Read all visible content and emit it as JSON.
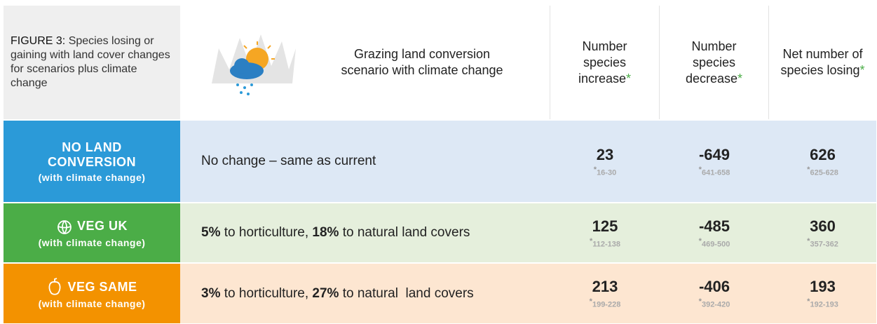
{
  "caption": {
    "label": "FIGURE 3:",
    "text": "Species losing or gaining with land cover changes for scenarios plus climate change"
  },
  "header": {
    "scenario": "Grazing land conversion scenario with climate change",
    "columns": [
      "Number species increase",
      "Number species decrease",
      "Net number of species losing"
    ],
    "asterisk": "*"
  },
  "rows": [
    {
      "name": "NO LAND CONVERSION",
      "note": "(with climate change)",
      "color": "#2b9ad8",
      "background": "#dde8f5",
      "description": [
        {
          "text": "No change – same as current",
          "bold": false
        }
      ],
      "values": [
        23,
        -649,
        626
      ],
      "ranges": [
        "16-30",
        "641-658",
        "625-628"
      ]
    },
    {
      "name": "VEG UK",
      "note": "(with climate change)",
      "color": "#4bad47",
      "background": "#e5efdc",
      "description": [
        {
          "text": "5%",
          "bold": true
        },
        {
          "text": " to horticulture, ",
          "bold": false
        },
        {
          "text": "18%",
          "bold": true
        },
        {
          "text": " to natural land covers",
          "bold": false
        }
      ],
      "values": [
        125,
        -485,
        360
      ],
      "ranges": [
        "112-138",
        "469-500",
        "357-362"
      ]
    },
    {
      "name": "VEG SAME",
      "note": "(with climate change)",
      "color": "#f39200",
      "background": "#fde6d1",
      "description": [
        {
          "text": "3%",
          "bold": true
        },
        {
          "text": " to horticulture, ",
          "bold": false
        },
        {
          "text": "27%",
          "bold": true
        },
        {
          "text": " to natural  land covers",
          "bold": false
        }
      ],
      "values": [
        213,
        -406,
        193
      ],
      "ranges": [
        "199-228",
        "392-420",
        "192-193"
      ]
    }
  ]
}
